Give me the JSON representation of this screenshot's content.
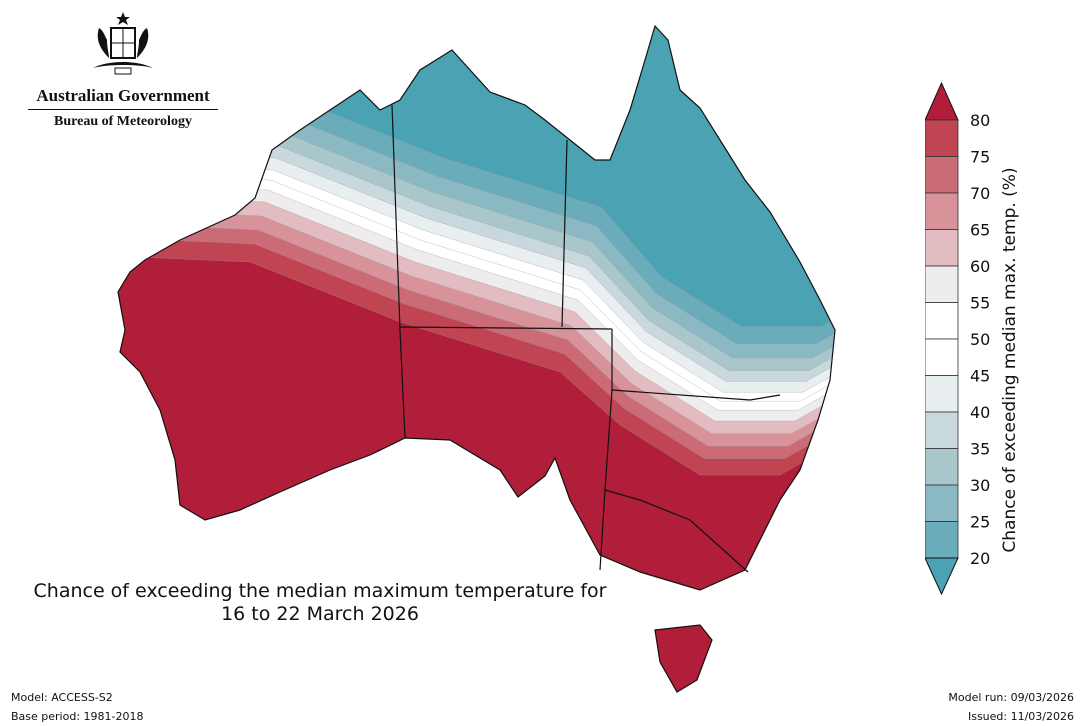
{
  "logo": {
    "government": "Australian Government",
    "agency": "Bureau of Meteorology"
  },
  "title": {
    "line1": "Chance of exceeding the median maximum temperature for",
    "line2": "16 to 22 March 2026"
  },
  "footer": {
    "model": "Model: ACCESS-S2",
    "base_period": "Base period: 1981-2018",
    "model_run": "Model run: 09/03/2026",
    "issued": "Issued: 11/03/2026"
  },
  "colorbar": {
    "label": "Chance of exceeding median max. temp. (%)",
    "ticks": [
      "80",
      "75",
      "70",
      "65",
      "60",
      "55",
      "50",
      "45",
      "40",
      "35",
      "30",
      "25",
      "20"
    ],
    "above_color": "#b01e3a",
    "below_color": "#4aa2b3",
    "band_colors": [
      "#c04452",
      "#ca6b75",
      "#d8939a",
      "#e2bcc0",
      "#eeecec",
      "#ffffff",
      "#ffffff",
      "#e9eff1",
      "#c9d8dc",
      "#a9c6cb",
      "#8bb9c3",
      "#6aacb9"
    ]
  }
}
